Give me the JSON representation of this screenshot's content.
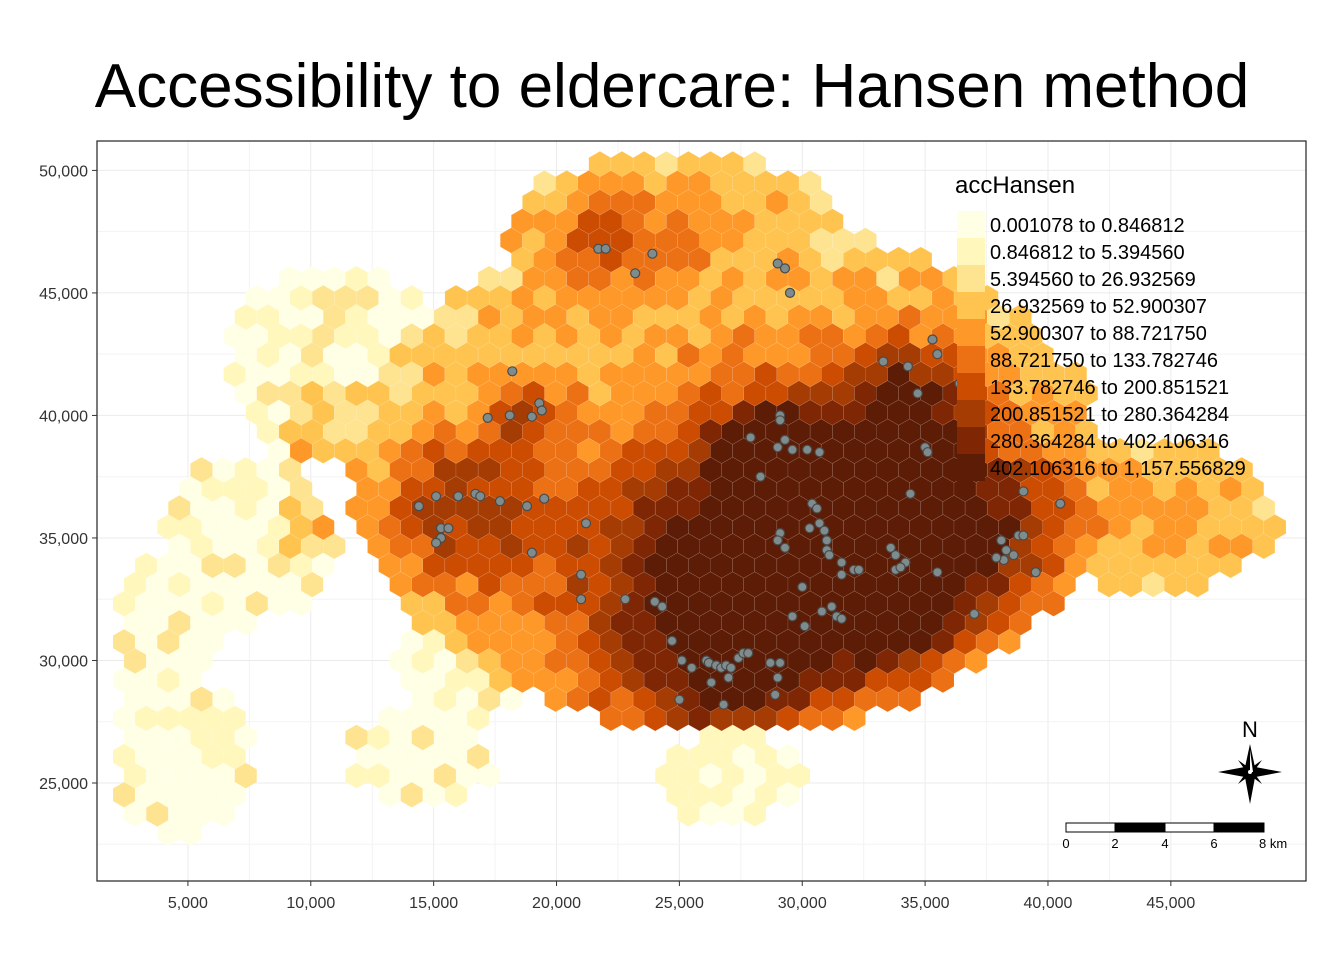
{
  "title": "Accessibility to eldercare: Hansen method",
  "chart_data": {
    "type": "heatmap",
    "x_ticks": [
      "5,000",
      "10,000",
      "15,000",
      "20,000",
      "25,000",
      "30,000",
      "35,000",
      "40,000",
      "45,000"
    ],
    "x_tick_values": [
      5000,
      10000,
      15000,
      20000,
      25000,
      30000,
      35000,
      40000,
      45000
    ],
    "y_ticks": [
      "50,000",
      "45,000",
      "40,000",
      "35,000",
      "30,000",
      "25,000"
    ],
    "y_tick_values": [
      50000,
      45000,
      40000,
      35000,
      30000,
      25000
    ],
    "xlim": [
      1300,
      50500
    ],
    "ylim": [
      21000,
      51200
    ],
    "grid": true,
    "legend": {
      "title": "accHansen",
      "placement": "top-right",
      "classes": [
        {
          "label": "0.001078 to 0.846812",
          "color": "#ffffe5"
        },
        {
          "label": "0.846812 to 5.394560",
          "color": "#fff7bc"
        },
        {
          "label": "5.394560 to 26.932569",
          "color": "#fee391"
        },
        {
          "label": "26.932569 to 52.900307",
          "color": "#fec44f"
        },
        {
          "label": "52.900307 to 88.721750",
          "color": "#fe9929"
        },
        {
          "label": "88.721750 to 133.782746",
          "color": "#ec7014"
        },
        {
          "label": "133.782746 to 200.851521",
          "color": "#cc4c02"
        },
        {
          "label": "200.851521 to 280.364284",
          "color": "#a53c03"
        },
        {
          "label": "280.364284 to 402.106316",
          "color": "#7f2704"
        },
        {
          "label": "402.106316 to 1,157.556829",
          "color": "#5c1c05"
        }
      ]
    },
    "points_color": "#7f8c8d",
    "eldercare_points": [
      [
        21700,
        46800
      ],
      [
        22000,
        46800
      ],
      [
        23900,
        46600
      ],
      [
        23200,
        45800
      ],
      [
        29000,
        46200
      ],
      [
        29300,
        46000
      ],
      [
        29500,
        45000
      ],
      [
        18200,
        41800
      ],
      [
        17200,
        39900
      ],
      [
        18100,
        40000
      ],
      [
        19300,
        40500
      ],
      [
        19400,
        40200
      ],
      [
        19000,
        39950
      ],
      [
        14400,
        36300
      ],
      [
        15100,
        36700
      ],
      [
        16000,
        36700
      ],
      [
        16700,
        36800
      ],
      [
        16900,
        36700
      ],
      [
        17700,
        36500
      ],
      [
        18800,
        36300
      ],
      [
        19500,
        36600
      ],
      [
        15300,
        35400
      ],
      [
        15600,
        35400
      ],
      [
        15300,
        35000
      ],
      [
        15100,
        34800
      ],
      [
        21200,
        35600
      ],
      [
        19000,
        34400
      ],
      [
        21000,
        33500
      ],
      [
        21000,
        32500
      ],
      [
        22800,
        32500
      ],
      [
        24000,
        32400
      ],
      [
        24300,
        32200
      ],
      [
        24700,
        30800
      ],
      [
        25100,
        30000
      ],
      [
        25500,
        29700
      ],
      [
        26100,
        30000
      ],
      [
        26200,
        29900
      ],
      [
        26500,
        29800
      ],
      [
        26700,
        29700
      ],
      [
        26900,
        29800
      ],
      [
        27100,
        29700
      ],
      [
        27400,
        30100
      ],
      [
        27600,
        30300
      ],
      [
        27800,
        30300
      ],
      [
        26300,
        29100
      ],
      [
        26800,
        28200
      ],
      [
        25000,
        28400
      ],
      [
        28700,
        29900
      ],
      [
        29100,
        29900
      ],
      [
        29000,
        29300
      ],
      [
        28900,
        28600
      ],
      [
        27000,
        29300
      ],
      [
        29100,
        40000
      ],
      [
        29100,
        39800
      ],
      [
        27900,
        39100
      ],
      [
        29300,
        39000
      ],
      [
        29000,
        38700
      ],
      [
        29600,
        38600
      ],
      [
        30200,
        38600
      ],
      [
        30700,
        38500
      ],
      [
        28300,
        37500
      ],
      [
        30400,
        36400
      ],
      [
        30600,
        36200
      ],
      [
        30700,
        35600
      ],
      [
        30300,
        35400
      ],
      [
        29100,
        35200
      ],
      [
        29000,
        34900
      ],
      [
        29300,
        34600
      ],
      [
        30900,
        35300
      ],
      [
        31000,
        34900
      ],
      [
        31000,
        34500
      ],
      [
        31100,
        34300
      ],
      [
        31600,
        34000
      ],
      [
        32100,
        33700
      ],
      [
        31600,
        33500
      ],
      [
        32300,
        33700
      ],
      [
        30000,
        33000
      ],
      [
        29600,
        31800
      ],
      [
        30100,
        31400
      ],
      [
        30800,
        32000
      ],
      [
        31200,
        32200
      ],
      [
        31400,
        31800
      ],
      [
        31600,
        31700
      ],
      [
        33300,
        42200
      ],
      [
        34300,
        42000
      ],
      [
        35300,
        43100
      ],
      [
        35500,
        42500
      ],
      [
        36400,
        41300
      ],
      [
        34700,
        40900
      ],
      [
        35000,
        38700
      ],
      [
        35100,
        38500
      ],
      [
        34400,
        36800
      ],
      [
        33600,
        34600
      ],
      [
        33800,
        34300
      ],
      [
        34200,
        34000
      ],
      [
        33800,
        33700
      ],
      [
        34000,
        33800
      ],
      [
        35500,
        33600
      ],
      [
        37000,
        31900
      ],
      [
        38100,
        34900
      ],
      [
        38300,
        34500
      ],
      [
        38600,
        34300
      ],
      [
        38800,
        35100
      ],
      [
        39000,
        35100
      ],
      [
        38200,
        34100
      ],
      [
        37900,
        34200
      ],
      [
        39500,
        33600
      ],
      [
        39000,
        36900
      ],
      [
        40500,
        36400
      ]
    ]
  },
  "scale_bar": {
    "labels": [
      "0",
      "2",
      "4",
      "6",
      "8 km"
    ]
  },
  "north_arrow": {
    "label": "N"
  }
}
